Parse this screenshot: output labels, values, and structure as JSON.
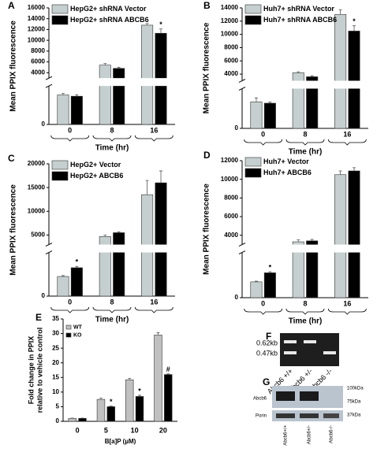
{
  "chart_data": [
    {
      "type": "broken-bar",
      "panel": "A",
      "ylabel": "Mean PPIX fluorescence",
      "xlabel": "Time (hr)",
      "categories": [
        "0",
        "8",
        "16"
      ],
      "series": [
        {
          "name": "HepG2+ shRNA Vector",
          "color": "#c5cfcf",
          "values": [
            1150,
            5400,
            12800
          ],
          "errors": [
            60,
            300,
            300
          ],
          "markers": [
            null,
            null,
            null
          ]
        },
        {
          "name": "HepG2+ shRNA ABCB6",
          "color": "#000000",
          "values": [
            1100,
            4800,
            11300
          ],
          "errors": [
            50,
            200,
            800
          ],
          "markers": [
            null,
            null,
            "*"
          ]
        }
      ],
      "ylim_lower": [
        0,
        1500
      ],
      "yticks_lower": [
        0
      ],
      "ylim": [
        3000,
        16000
      ],
      "yticks": [
        4000,
        6000,
        8000,
        10000,
        12000,
        14000,
        16000
      ],
      "legend": "upper left"
    },
    {
      "type": "broken-bar",
      "panel": "B",
      "ylabel": "Mean PPIX fluorescence",
      "xlabel": "Time (hr)",
      "categories": [
        "0",
        "8",
        "16"
      ],
      "series": [
        {
          "name": "Huh7+ shRNA Vector",
          "color": "#c5cfcf",
          "values": [
            1000,
            4200,
            13000
          ],
          "errors": [
            150,
            150,
            700
          ],
          "markers": [
            null,
            null,
            null
          ]
        },
        {
          "name": "Huh7+ shRNA ABCB6",
          "color": "#000000",
          "values": [
            950,
            3600,
            10500
          ],
          "errors": [
            40,
            150,
            800
          ],
          "markers": [
            null,
            null,
            "*"
          ]
        }
      ],
      "ylim_lower": [
        0,
        1500
      ],
      "yticks_lower": [
        0
      ],
      "ylim": [
        3000,
        14000
      ],
      "yticks": [
        4000,
        6000,
        8000,
        10000,
        12000,
        14000
      ],
      "legend": "upper left"
    },
    {
      "type": "broken-bar",
      "panel": "C",
      "ylabel": "Mean PPIX fluorescence",
      "xlabel": "Time (hr)",
      "categories": [
        "0",
        "8",
        "16"
      ],
      "series": [
        {
          "name": "HepG2+ Vector",
          "color": "#c5cfcf",
          "values": [
            900,
            4700,
            13500
          ],
          "errors": [
            40,
            300,
            3000
          ],
          "markers": [
            null,
            null,
            null
          ]
        },
        {
          "name": "HepG2+ ABCB6",
          "color": "#000000",
          "values": [
            1300,
            5500,
            16000
          ],
          "errors": [
            60,
            200,
            2500
          ],
          "markers": [
            "*",
            null,
            null
          ]
        }
      ],
      "ylim_lower": [
        0,
        2000
      ],
      "yticks_lower": [
        0
      ],
      "ylim": [
        3000,
        20000
      ],
      "yticks": [
        5000,
        10000,
        15000,
        20000
      ],
      "legend": "upper left"
    },
    {
      "type": "broken-bar",
      "panel": "D",
      "ylabel": "Mean PPIX fluorescence",
      "xlabel": "Time (hr)",
      "categories": [
        "0",
        "8",
        "16"
      ],
      "series": [
        {
          "name": "Huh7+ Vector",
          "color": "#c5cfcf",
          "values": [
            700,
            3300,
            10500
          ],
          "errors": [
            30,
            200,
            400
          ],
          "markers": [
            null,
            null,
            null
          ]
        },
        {
          "name": "Huh7+ ABCB6",
          "color": "#000000",
          "values": [
            1100,
            3400,
            10900
          ],
          "errors": [
            50,
            150,
            350
          ],
          "markers": [
            "*",
            null,
            null
          ]
        }
      ],
      "ylim_lower": [
        0,
        2000
      ],
      "yticks_lower": [
        0
      ],
      "ylim": [
        3000,
        12000
      ],
      "yticks": [
        4000,
        6000,
        8000,
        10000,
        12000
      ],
      "legend": "upper left"
    },
    {
      "type": "bar",
      "panel": "E",
      "ylabel": [
        "Fold change in PPIX",
        "relative to vehicle control"
      ],
      "xlabel": "B[a]P (µM)",
      "categories": [
        "0",
        "5",
        "10",
        "20"
      ],
      "series": [
        {
          "name": "WT",
          "color": "#c0c0c0",
          "values": [
            1,
            7.5,
            14.2,
            29.5
          ],
          "errors": [
            0.1,
            0.4,
            0.5,
            0.8
          ],
          "markers": [
            null,
            null,
            null,
            null
          ]
        },
        {
          "name": "KO",
          "color": "#000000",
          "values": [
            1,
            5,
            8.5,
            16
          ],
          "errors": [
            0.1,
            0.2,
            0.4,
            0.2
          ],
          "markers": [
            null,
            "*",
            "*",
            "#"
          ]
        }
      ],
      "ylim": [
        0,
        35
      ],
      "yticks": [
        0,
        5,
        10,
        15,
        20,
        25,
        30,
        35
      ],
      "legend": "upper left"
    }
  ],
  "gels": [
    {
      "panel": "F",
      "sizes": [
        "0.62kb",
        "0.47kb"
      ],
      "lanes": [
        "Abcb6 +/+",
        "Abcb6 +/-",
        "Abcb6 -/-"
      ]
    },
    {
      "panel": "G",
      "rows": [
        "Abcb6",
        "Porin"
      ],
      "markers": [
        "100kDa",
        "75kDa",
        "37kDa"
      ],
      "lanes": [
        "Abcb6+/+",
        "Abcb6+/-",
        "Abcb6-/-"
      ]
    }
  ]
}
